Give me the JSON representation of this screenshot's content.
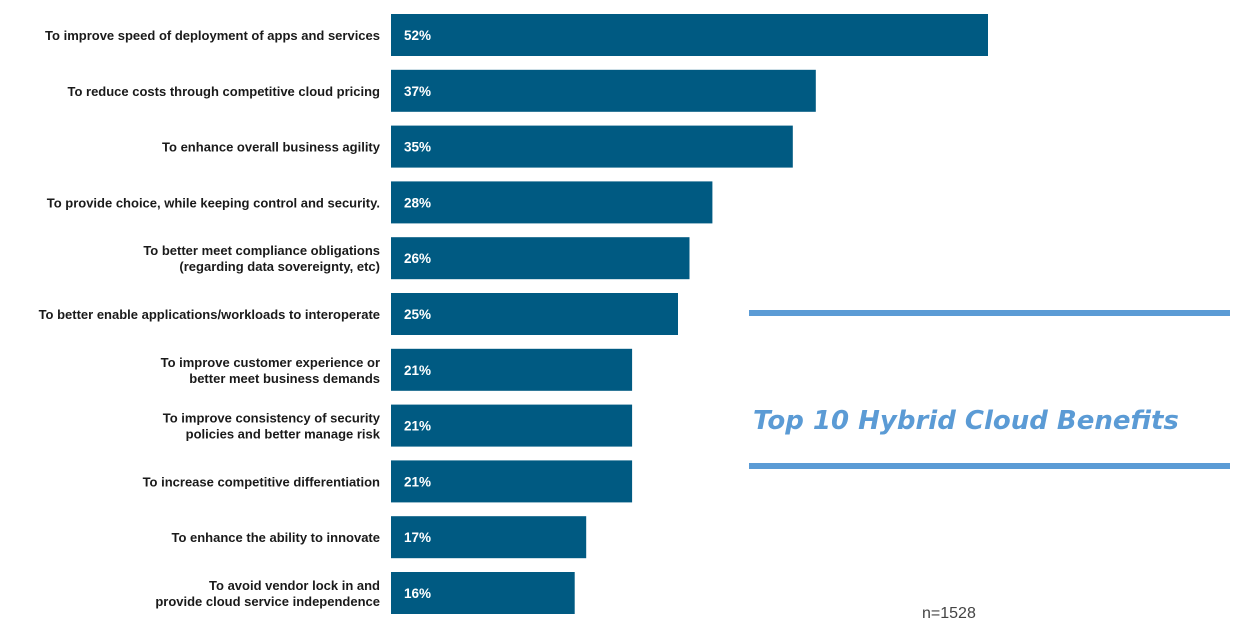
{
  "chart_data": {
    "type": "bar",
    "orientation": "horizontal",
    "title": "Top 10 Hybrid Cloud Benefits",
    "note": "n=1528",
    "categories": [
      [
        "To improve speed of deployment of apps and services"
      ],
      [
        "To reduce costs through competitive cloud pricing"
      ],
      [
        "To enhance overall business agility"
      ],
      [
        "To provide choice, while keeping control and security."
      ],
      [
        "To better meet compliance obligations",
        "(regarding data sovereignty, etc)"
      ],
      [
        "To better enable applications/workloads to interoperate"
      ],
      [
        "To improve customer experience or",
        "better meet business demands"
      ],
      [
        "To improve consistency of security",
        "policies and better manage risk"
      ],
      [
        "To increase competitive differentiation"
      ],
      [
        "To enhance the ability to innovate"
      ],
      [
        "To avoid vendor lock in and",
        "provide cloud service independence"
      ]
    ],
    "values": [
      52,
      37,
      35,
      28,
      26,
      25,
      21,
      21,
      21,
      17,
      16
    ],
    "value_labels": [
      "52%",
      "37%",
      "35%",
      "28%",
      "26%",
      "25%",
      "21%",
      "21%",
      "21%",
      "17%",
      "16%"
    ],
    "value_unit": "%",
    "grid": false,
    "legend": "none",
    "colors": {
      "bar": "#005a82",
      "title": "#5b9bd5",
      "rule": "#5b9bd5",
      "label": "#1a1a1a",
      "note": "#444444",
      "value_text": "#ffffff"
    }
  }
}
